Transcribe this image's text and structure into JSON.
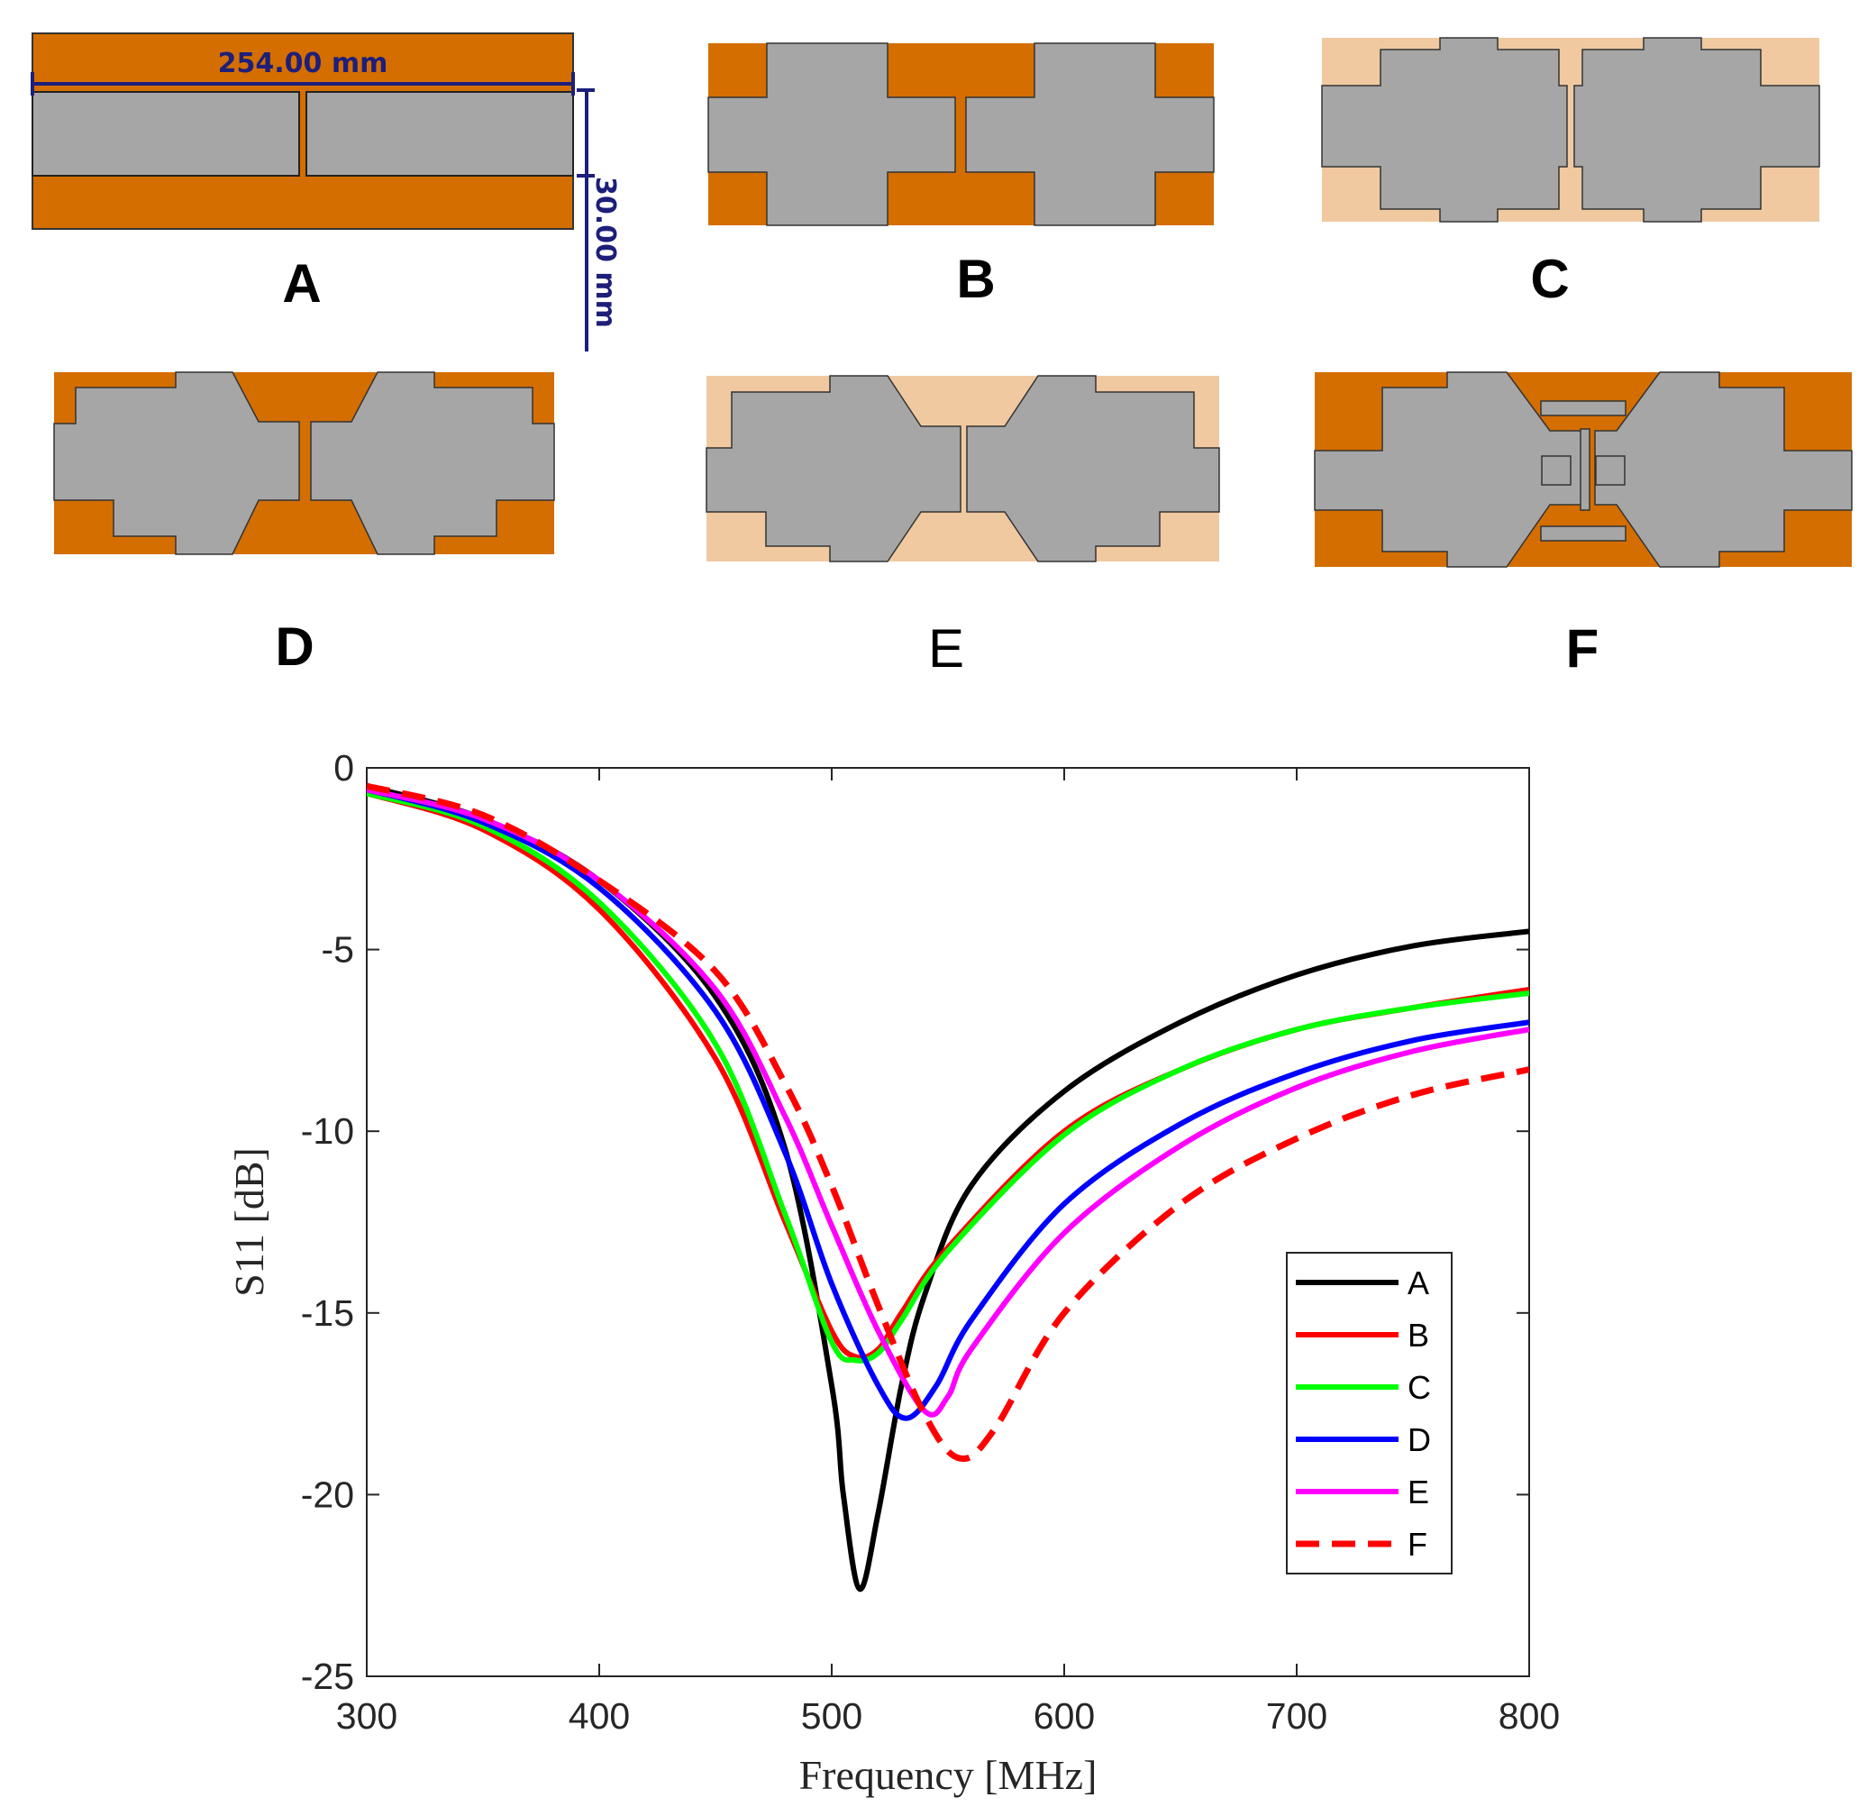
{
  "panels": {
    "labels": [
      "A",
      "B",
      "C",
      "D",
      "E",
      "F"
    ],
    "dimension_width": "254.00 mm",
    "dimension_height": "30.00 mm",
    "colors": {
      "copper": "#d46e00",
      "substrate_light": "#f0c9a0",
      "metal": "#a6a6a6"
    }
  },
  "chart_data": {
    "type": "line",
    "title": "",
    "xlabel": "Frequency [MHz]",
    "ylabel": "S11 [dB]",
    "xlim": [
      300,
      800
    ],
    "ylim": [
      -25,
      0
    ],
    "xticks": [
      300,
      400,
      500,
      600,
      700,
      800
    ],
    "yticks": [
      0,
      -5,
      -10,
      -15,
      -20,
      -25
    ],
    "grid": false,
    "legend_position": "bottom-right",
    "series": [
      {
        "name": "A",
        "color": "#000000",
        "dash": "solid",
        "points": [
          [
            300,
            -0.5
          ],
          [
            350,
            -1.4
          ],
          [
            400,
            -3.1
          ],
          [
            450,
            -6.3
          ],
          [
            480,
            -10.5
          ],
          [
            500,
            -17.0
          ],
          [
            505,
            -20.0
          ],
          [
            512,
            -22.6
          ],
          [
            520,
            -20.5
          ],
          [
            530,
            -17.0
          ],
          [
            540,
            -14.5
          ],
          [
            560,
            -11.5
          ],
          [
            600,
            -8.9
          ],
          [
            650,
            -7.0
          ],
          [
            700,
            -5.7
          ],
          [
            750,
            -4.9
          ],
          [
            800,
            -4.5
          ]
        ]
      },
      {
        "name": "B",
        "color": "#ff0000",
        "dash": "solid",
        "points": [
          [
            300,
            -0.7
          ],
          [
            350,
            -1.7
          ],
          [
            400,
            -3.9
          ],
          [
            450,
            -8.0
          ],
          [
            480,
            -12.5
          ],
          [
            500,
            -15.5
          ],
          [
            510,
            -16.2
          ],
          [
            520,
            -16.0
          ],
          [
            530,
            -15.0
          ],
          [
            550,
            -13.2
          ],
          [
            600,
            -10.0
          ],
          [
            650,
            -8.3
          ],
          [
            700,
            -7.2
          ],
          [
            750,
            -6.6
          ],
          [
            800,
            -6.1
          ]
        ]
      },
      {
        "name": "C",
        "color": "#00ff00",
        "dash": "solid",
        "points": [
          [
            300,
            -0.7
          ],
          [
            350,
            -1.6
          ],
          [
            400,
            -3.7
          ],
          [
            450,
            -7.6
          ],
          [
            480,
            -12.3
          ],
          [
            500,
            -15.8
          ],
          [
            510,
            -16.3
          ],
          [
            520,
            -16.1
          ],
          [
            530,
            -15.2
          ],
          [
            550,
            -13.3
          ],
          [
            600,
            -10.1
          ],
          [
            650,
            -8.3
          ],
          [
            700,
            -7.2
          ],
          [
            750,
            -6.6
          ],
          [
            800,
            -6.2
          ]
        ]
      },
      {
        "name": "D",
        "color": "#0000ff",
        "dash": "solid",
        "points": [
          [
            300,
            -0.6
          ],
          [
            350,
            -1.5
          ],
          [
            400,
            -3.3
          ],
          [
            450,
            -6.7
          ],
          [
            480,
            -10.6
          ],
          [
            500,
            -14.2
          ],
          [
            520,
            -17.0
          ],
          [
            532,
            -17.9
          ],
          [
            545,
            -17.0
          ],
          [
            560,
            -15.2
          ],
          [
            600,
            -12.0
          ],
          [
            650,
            -9.8
          ],
          [
            700,
            -8.4
          ],
          [
            750,
            -7.5
          ],
          [
            800,
            -7.0
          ]
        ]
      },
      {
        "name": "E",
        "color": "#ff00ff",
        "dash": "solid",
        "points": [
          [
            300,
            -0.6
          ],
          [
            350,
            -1.4
          ],
          [
            400,
            -3.1
          ],
          [
            450,
            -6.1
          ],
          [
            480,
            -9.6
          ],
          [
            500,
            -12.6
          ],
          [
            520,
            -15.5
          ],
          [
            540,
            -17.7
          ],
          [
            550,
            -17.3
          ],
          [
            560,
            -16.0
          ],
          [
            600,
            -12.8
          ],
          [
            650,
            -10.4
          ],
          [
            700,
            -8.8
          ],
          [
            750,
            -7.8
          ],
          [
            800,
            -7.2
          ]
        ]
      },
      {
        "name": "F",
        "color": "#ff0000",
        "dash": "dashed",
        "points": [
          [
            300,
            -0.5
          ],
          [
            350,
            -1.3
          ],
          [
            400,
            -3.1
          ],
          [
            450,
            -5.6
          ],
          [
            480,
            -8.7
          ],
          [
            500,
            -11.5
          ],
          [
            520,
            -14.8
          ],
          [
            540,
            -17.8
          ],
          [
            555,
            -19.0
          ],
          [
            570,
            -18.2
          ],
          [
            600,
            -15.0
          ],
          [
            650,
            -12.0
          ],
          [
            700,
            -10.2
          ],
          [
            750,
            -9.0
          ],
          [
            800,
            -8.3
          ]
        ]
      }
    ]
  }
}
